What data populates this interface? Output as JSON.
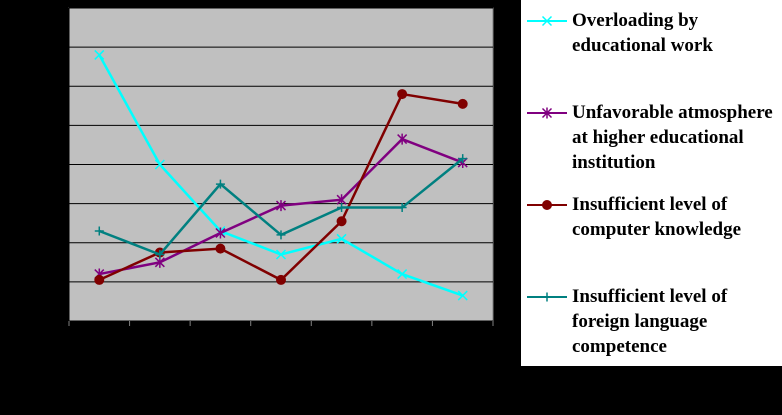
{
  "chart_data": {
    "type": "line",
    "title": "",
    "xlabel": "",
    "ylabel": "",
    "x_count": 7,
    "ylim": [
      0,
      8
    ],
    "y_gridlines": [
      1,
      2,
      3,
      4,
      5,
      6,
      7,
      8
    ],
    "grid": true,
    "plot_background": "#c0c0c0",
    "legend_position": "right",
    "series": [
      {
        "name": "Overloading by educational work",
        "color": "#00ffff",
        "marker": "x",
        "values": [
          6.8,
          4.0,
          2.3,
          1.7,
          2.1,
          1.2,
          0.65
        ]
      },
      {
        "name": "Unfavorable atmosphere  at higher educational institution",
        "color": "#800080",
        "marker": "asterisk",
        "values": [
          1.2,
          1.5,
          2.25,
          2.95,
          3.1,
          4.65,
          4.05
        ]
      },
      {
        "name": "Insufficient level of computer knowledge",
        "color": "#800000",
        "marker": "circle",
        "values": [
          1.05,
          1.75,
          1.85,
          1.05,
          2.55,
          5.8,
          5.55
        ]
      },
      {
        "name": "Insufficient level of foreign language competence",
        "color": "#008080",
        "marker": "plus",
        "values": [
          2.3,
          1.7,
          3.5,
          2.2,
          2.9,
          2.9,
          4.15
        ]
      }
    ]
  }
}
